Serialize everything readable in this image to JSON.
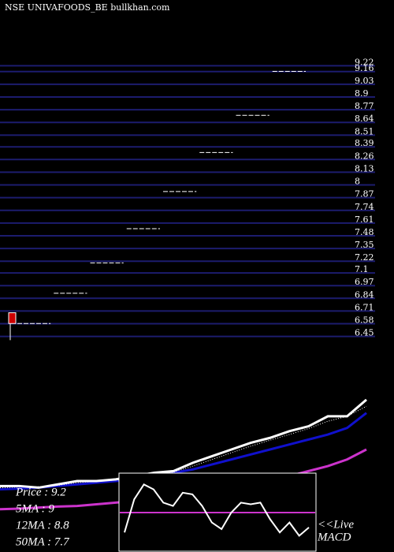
{
  "chart_data": [
    {
      "type": "levels",
      "title": "NSE UNIVAFOODS_BE bullkhan.com",
      "ylim": [
        6.31,
        9.86
      ],
      "yticks": [
        9.22,
        9.16,
        9.03,
        8.9,
        8.77,
        8.64,
        8.51,
        8.39,
        8.26,
        8.13,
        8,
        7.87,
        7.74,
        7.61,
        7.48,
        7.35,
        7.22,
        7.1,
        6.97,
        6.84,
        6.71,
        6.58,
        6.45
      ],
      "grid": true,
      "grid_color": "#1c1c6e",
      "values": [
        6.55,
        6.86,
        7.17,
        7.52,
        7.9,
        8.3,
        8.68,
        9.13
      ],
      "color": "#ffffff",
      "candle": {
        "open": 6.66,
        "close": 6.55,
        "low": 6.38,
        "color": "#cc0000"
      }
    },
    {
      "type": "line",
      "ylim": [
        5.8,
        9.6
      ],
      "series": [
        {
          "name": "Price : 9.2",
          "color": "#ffffff",
          "style": "solid",
          "values": [
            6.6,
            6.6,
            6.55,
            6.65,
            6.75,
            6.75,
            6.8,
            6.9,
            7.0,
            7.05,
            7.3,
            7.5,
            7.7,
            7.9,
            8.05,
            8.25,
            8.4,
            8.7,
            8.7,
            9.2
          ]
        },
        {
          "name": "5MA : 9",
          "color": "#ffffff",
          "style": "dotted",
          "values": [
            6.55,
            6.57,
            6.58,
            6.62,
            6.7,
            6.74,
            6.78,
            6.85,
            6.95,
            7.02,
            7.2,
            7.4,
            7.6,
            7.8,
            7.98,
            8.15,
            8.33,
            8.55,
            8.7,
            9.0
          ]
        },
        {
          "name": "12MA : 8.8",
          "color": "#1010cc",
          "style": "solid",
          "values": [
            6.5,
            6.52,
            6.55,
            6.6,
            6.65,
            6.7,
            6.75,
            6.8,
            6.9,
            7.0,
            7.1,
            7.25,
            7.4,
            7.55,
            7.7,
            7.85,
            8.0,
            8.15,
            8.35,
            8.8
          ]
        },
        {
          "name": "50MA : 7.7",
          "color": "#cc33cc",
          "style": "solid",
          "values": [
            5.9,
            5.92,
            5.95,
            5.98,
            6.0,
            6.05,
            6.1,
            6.15,
            6.2,
            6.25,
            6.3,
            6.4,
            6.5,
            6.6,
            6.75,
            6.9,
            7.05,
            7.2,
            7.4,
            7.7
          ]
        }
      ]
    },
    {
      "type": "macd",
      "ylim": [
        -1,
        1
      ],
      "signal": 0,
      "signal_color": "#cc33cc",
      "values": [
        -0.6,
        0.4,
        0.85,
        0.7,
        0.3,
        0.2,
        0.6,
        0.55,
        0.2,
        -0.3,
        -0.5,
        0.0,
        0.3,
        0.25,
        0.3,
        -0.2,
        -0.6,
        -0.3,
        -0.7,
        -0.45
      ],
      "color": "#ffffff",
      "annotations": [
        "<<Live",
        "MACD"
      ]
    }
  ]
}
